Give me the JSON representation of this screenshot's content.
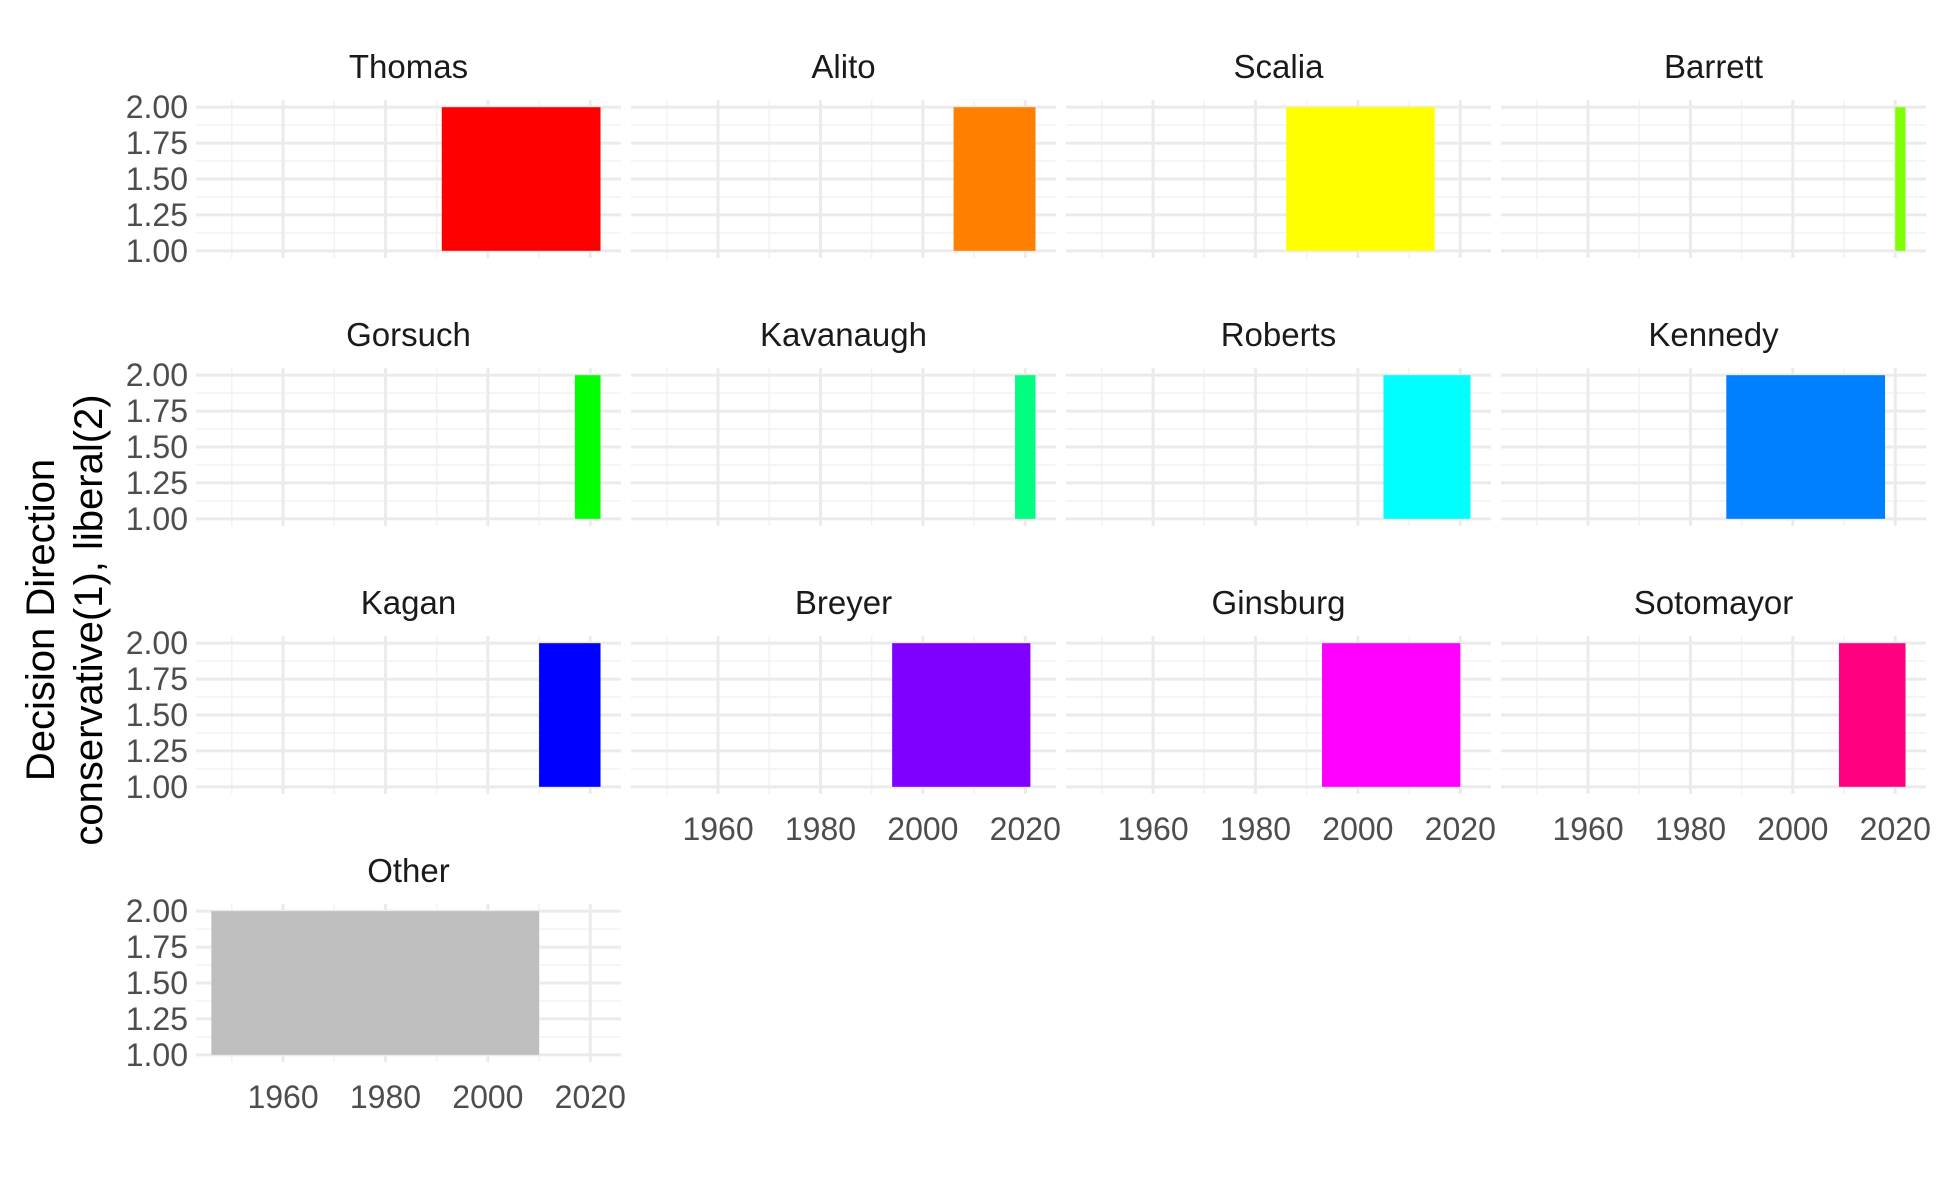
{
  "chart_data": {
    "type": "scatter",
    "facet_by": "justice",
    "xlabel": "",
    "ylabel_lines": [
      "Decision Direction",
      "conservative(1), liberal(2)"
    ],
    "xlim": [
      1943,
      2026
    ],
    "ylim": [
      0.95,
      2.05
    ],
    "x_ticks": [
      1960,
      1980,
      2000,
      2020
    ],
    "y_ticks": [
      1.0,
      1.25,
      1.5,
      1.75,
      2.0
    ],
    "y_tick_labels": [
      "1.00",
      "1.25",
      "1.50",
      "1.75",
      "2.00"
    ],
    "grid": true,
    "legend": "none",
    "panels": [
      {
        "name": "Thomas",
        "color": "#FF0000",
        "x_range": [
          1991,
          2022
        ],
        "y_range": [
          1,
          2
        ]
      },
      {
        "name": "Alito",
        "color": "#FF8000",
        "x_range": [
          2006,
          2022
        ],
        "y_range": [
          1,
          2
        ]
      },
      {
        "name": "Scalia",
        "color": "#FFFF00",
        "x_range": [
          1986,
          2015
        ],
        "y_range": [
          1,
          2
        ]
      },
      {
        "name": "Barrett",
        "color": "#80FF00",
        "x_range": [
          2020,
          2022
        ],
        "y_range": [
          1,
          2
        ]
      },
      {
        "name": "Gorsuch",
        "color": "#00FF00",
        "x_range": [
          2017,
          2022
        ],
        "y_range": [
          1,
          2
        ]
      },
      {
        "name": "Kavanaugh",
        "color": "#00FF80",
        "x_range": [
          2018,
          2022
        ],
        "y_range": [
          1,
          2
        ]
      },
      {
        "name": "Roberts",
        "color": "#00FFFF",
        "x_range": [
          2005,
          2022
        ],
        "y_range": [
          1,
          2
        ]
      },
      {
        "name": "Kennedy",
        "color": "#0080FF",
        "x_range": [
          1987,
          2018
        ],
        "y_range": [
          1,
          2
        ]
      },
      {
        "name": "Kagan",
        "color": "#0000FF",
        "x_range": [
          2010,
          2022
        ],
        "y_range": [
          1,
          2
        ]
      },
      {
        "name": "Breyer",
        "color": "#8000FF",
        "x_range": [
          1994,
          2021
        ],
        "y_range": [
          1,
          2
        ]
      },
      {
        "name": "Ginsburg",
        "color": "#FF00FF",
        "x_range": [
          1993,
          2020
        ],
        "y_range": [
          1,
          2
        ]
      },
      {
        "name": "Sotomayor",
        "color": "#FF0080",
        "x_range": [
          2009,
          2022
        ],
        "y_range": [
          1,
          2
        ]
      },
      {
        "name": "Other",
        "color": "#BEBEBE",
        "x_range": [
          1946,
          2010
        ],
        "y_range": [
          1,
          2
        ]
      }
    ]
  }
}
